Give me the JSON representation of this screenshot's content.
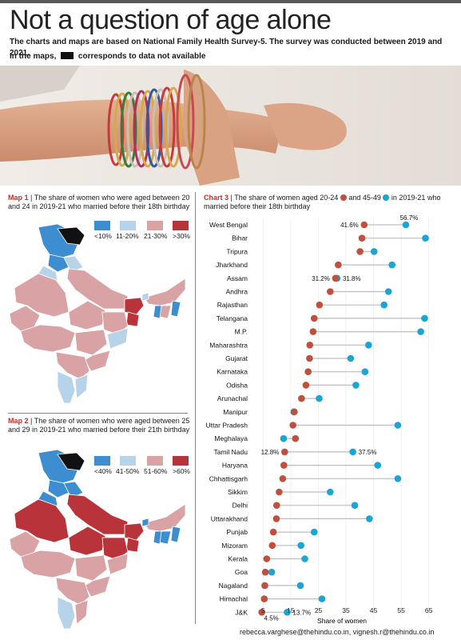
{
  "header": {
    "title": "Not a question of age alone",
    "subtitle": "The charts and maps are based on National Family Health Survey-5. The survey was conducted between 2019 and 2021.",
    "note_pre": "In the maps,",
    "note_post": "corresponds to data not available"
  },
  "map1": {
    "label": "Map 1",
    "sep": " | ",
    "description": "The share of women who were aged between 20 and 24 in 2019-21 who married before their 18th birthday",
    "legend": [
      {
        "label": "<10%",
        "color": "#3d8ed0"
      },
      {
        "label": "11-20%",
        "color": "#b7d3ea"
      },
      {
        "label": "21-30%",
        "color": "#d9a2a5"
      },
      {
        "label": ">30%",
        "color": "#b8343a"
      }
    ]
  },
  "map2": {
    "label": "Map 2",
    "sep": " | ",
    "description": "The share of women who were aged between 25 and 29 in 2019-21 who married before their 21th birthday",
    "legend": [
      {
        "label": "<40%",
        "color": "#3d8ed0"
      },
      {
        "label": "41-50%",
        "color": "#b7d3ea"
      },
      {
        "label": "51-60%",
        "color": "#d9a2a5"
      },
      {
        "label": ">60%",
        "color": "#b8343a"
      }
    ]
  },
  "chart": {
    "label": "Chart 3",
    "sep": " | ",
    "text_a": "The share of women aged 20-24",
    "text_b": "and 45-49",
    "text_c": "in 2019-21 who married before their 18th birthday"
  },
  "chart_data": {
    "type": "scatter",
    "xlabel": "Share of women",
    "xlim": [
      2,
      68
    ],
    "xticks": [
      5,
      15,
      25,
      35,
      45,
      55,
      65
    ],
    "colors": {
      "age_20_24": "#c0503e",
      "age_45_49": "#1aa5d2"
    },
    "categories": [
      "West Bengal",
      "Bihar",
      "Tripura",
      "Jharkhand",
      "Assam",
      "Andhra",
      "Rajasthan",
      "Telangana",
      "M.P.",
      "Maharashtra",
      "Gujarat",
      "Karnataka",
      "Odisha",
      "Arunachal",
      "Manipur",
      "Uttar Pradesh",
      "Meghalaya",
      "Tamil Nadu",
      "Haryana",
      "Chhattisgarh",
      "Sikkim",
      "Delhi",
      "Uttarakhand",
      "Punjab",
      "Mizoram",
      "Kerala",
      "Goa",
      "Nagaland",
      "Himachal",
      "J&K"
    ],
    "series": [
      {
        "key": "age_20_24",
        "values": [
          41.6,
          40.8,
          40.1,
          32.2,
          31.2,
          29.3,
          25.4,
          23.5,
          23.1,
          21.9,
          21.8,
          21.3,
          20.5,
          18.9,
          16.3,
          15.8,
          16.7,
          12.8,
          12.5,
          12.1,
          10.8,
          9.9,
          9.8,
          8.7,
          8.3,
          6.3,
          5.8,
          5.6,
          5.4,
          4.5
        ]
      },
      {
        "key": "age_45_49",
        "values": [
          56.7,
          63.8,
          45.2,
          51.7,
          31.8,
          50.4,
          48.8,
          63.5,
          62.1,
          43.2,
          36.7,
          41.9,
          38.6,
          25.3,
          16.1,
          53.8,
          12.4,
          37.5,
          46.5,
          53.8,
          29.3,
          38.2,
          43.5,
          23.5,
          18.7,
          20.1,
          8.1,
          18.5,
          26.3,
          13.7
        ]
      }
    ],
    "annotations": [
      {
        "category": "West Bengal",
        "series": "age_20_24",
        "text": "41.6%"
      },
      {
        "category": "West Bengal",
        "series": "age_45_49",
        "text": "56.7%"
      },
      {
        "category": "Assam",
        "series": "age_20_24",
        "text": "31.2%"
      },
      {
        "category": "Assam",
        "series": "age_45_49",
        "text": "31.8%"
      },
      {
        "category": "Tamil Nadu",
        "series": "age_20_24",
        "text": "12.8%"
      },
      {
        "category": "Tamil Nadu",
        "series": "age_45_49",
        "text": "37.5%"
      },
      {
        "category": "J&K",
        "series": "age_20_24",
        "text": "4.5%"
      },
      {
        "category": "J&K",
        "series": "age_45_49",
        "text": "13.7%"
      }
    ]
  },
  "footer": {
    "credit": "rebecca.varghese@thehindu.co.in, vignesh.r@thehindu.co.in"
  }
}
